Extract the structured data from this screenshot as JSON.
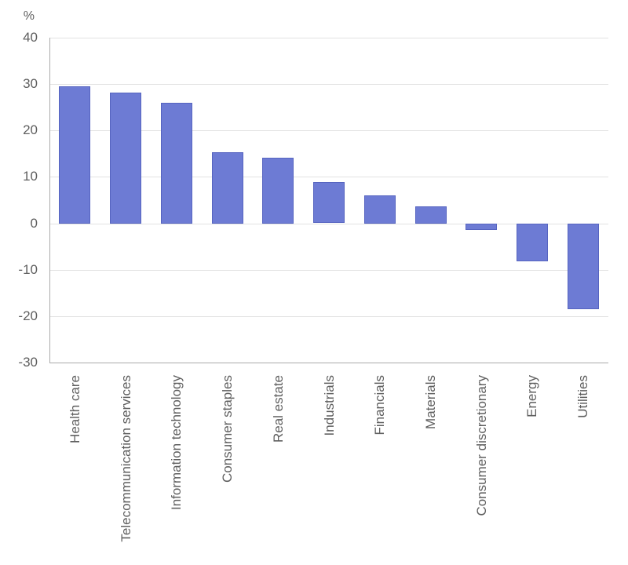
{
  "chart_data": {
    "type": "bar",
    "title": "",
    "unit_label": "%",
    "categories": [
      "Health care",
      "Telecommunication services",
      "Information technology",
      "Consumer staples",
      "Real estate",
      "Industrials",
      "Financials",
      "Materials",
      "Consumer discretionary",
      "Energy",
      "Utilities"
    ],
    "values": [
      29.5,
      28.2,
      25.9,
      15.3,
      14.2,
      8.9,
      6.0,
      3.7,
      -1.4,
      -8.2,
      -18.5
    ],
    "xlabel": "",
    "ylabel": "%",
    "ylim": [
      -30,
      40
    ],
    "yticks": [
      40,
      30,
      20,
      10,
      0,
      -10,
      -20,
      -30
    ],
    "grid": true,
    "legend": false,
    "colors": {
      "bar_fill": "#6d7bd4",
      "bar_border": "#5664c0",
      "gridline": "#e2e2e2",
      "axis": "#aaaaaa",
      "text": "#5f5f5f",
      "background": "#ffffff"
    }
  }
}
